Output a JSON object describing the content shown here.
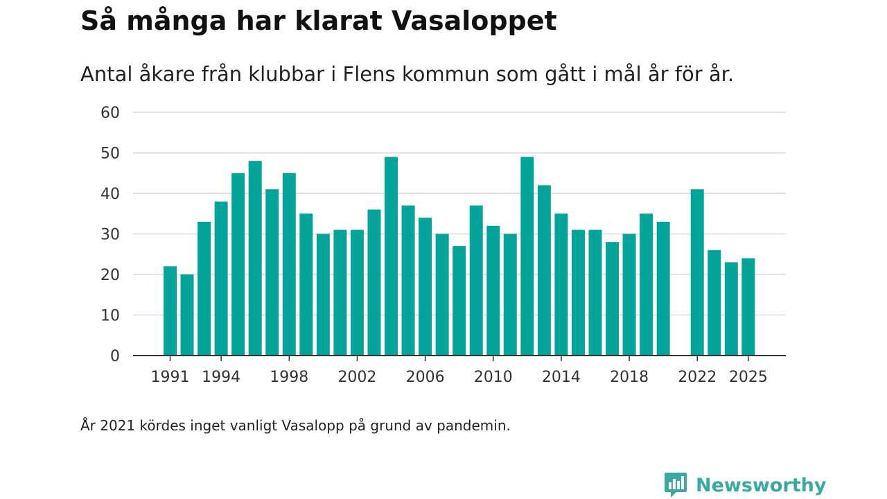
{
  "title": "Så många har klarat Vasaloppet",
  "subtitle": "Antal åkare från klubbar i Flens kommun som gått i mål år för år.",
  "footnote": "År 2021 kördes inget vanligt Vasalopp på grund av pandemin.",
  "brand": {
    "name": "Newsworthy",
    "icon": "newsworthy-logo-icon",
    "color": "#3aa8a3"
  },
  "colors": {
    "bar": "#05a49a",
    "grid": "#d9d9d9",
    "axis": "#333333"
  },
  "chart_data": {
    "type": "bar",
    "title": "Så många har klarat Vasaloppet",
    "xlabel": "",
    "ylabel": "",
    "ylim": [
      0,
      60
    ],
    "yticks": [
      0,
      10,
      20,
      30,
      40,
      50,
      60
    ],
    "xtick_labels": [
      "1991",
      "1994",
      "1998",
      "2002",
      "2006",
      "2010",
      "2014",
      "2018",
      "2022",
      "2025"
    ],
    "categories": [
      1991,
      1992,
      1993,
      1994,
      1995,
      1996,
      1997,
      1998,
      1999,
      2000,
      2001,
      2002,
      2003,
      2004,
      2005,
      2006,
      2007,
      2008,
      2009,
      2010,
      2011,
      2012,
      2013,
      2014,
      2015,
      2016,
      2017,
      2018,
      2019,
      2020,
      2021,
      2022,
      2023,
      2024,
      2025
    ],
    "values": [
      22,
      20,
      33,
      38,
      45,
      48,
      41,
      45,
      35,
      30,
      31,
      31,
      36,
      49,
      37,
      34,
      30,
      27,
      37,
      32,
      30,
      49,
      42,
      35,
      31,
      31,
      28,
      30,
      35,
      33,
      null,
      41,
      26,
      23,
      24
    ],
    "grid": true
  }
}
